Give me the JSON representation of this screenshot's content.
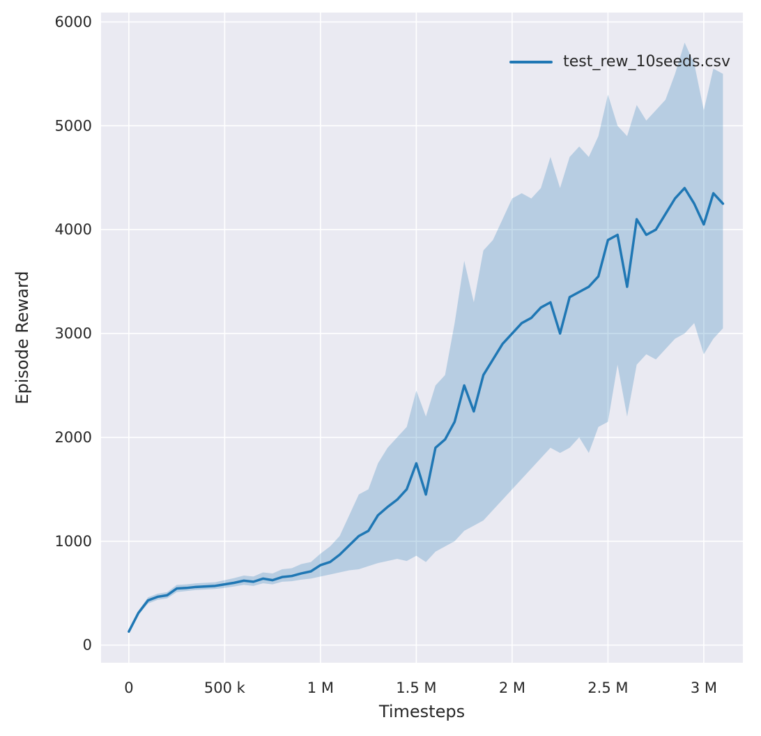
{
  "chart_data": {
    "type": "line",
    "title": "",
    "xlabel": "Timesteps",
    "ylabel": "Episode Reward",
    "legend": [
      "test_rew_10seeds.csv"
    ],
    "legend_position": "upper right",
    "grid": true,
    "style": "seaborn-darkgrid",
    "xlim": [
      -145000,
      3204000
    ],
    "ylim": [
      -170,
      6090
    ],
    "xtick_values": [
      0,
      500000,
      1000000,
      1500000,
      2000000,
      2500000,
      3000000
    ],
    "xtick_labels": [
      "0",
      "500 k",
      "1 M",
      "1.5 M",
      "2 M",
      "2.5 M",
      "3 M"
    ],
    "ytick_values": [
      0,
      1000,
      2000,
      3000,
      4000,
      5000,
      6000
    ],
    "ytick_labels": [
      "0",
      "1000",
      "2000",
      "3000",
      "4000",
      "5000",
      "6000"
    ],
    "colors": {
      "line": "#1f77b4",
      "band": "rgba(31,119,180,0.25)",
      "plot_bg": "#eaeaf2",
      "grid": "#ffffff",
      "text": "#262626"
    },
    "x": [
      0,
      50000,
      100000,
      150000,
      200000,
      250000,
      300000,
      350000,
      400000,
      450000,
      500000,
      550000,
      600000,
      650000,
      700000,
      750000,
      800000,
      850000,
      900000,
      950000,
      1000000,
      1050000,
      1100000,
      1150000,
      1200000,
      1250000,
      1300000,
      1350000,
      1400000,
      1450000,
      1500000,
      1550000,
      1600000,
      1650000,
      1700000,
      1750000,
      1800000,
      1850000,
      1900000,
      1950000,
      2000000,
      2050000,
      2100000,
      2150000,
      2200000,
      2250000,
      2300000,
      2350000,
      2400000,
      2450000,
      2500000,
      2550000,
      2600000,
      2650000,
      2700000,
      2750000,
      2800000,
      2850000,
      2900000,
      2950000,
      3000000,
      3050000,
      3100000
    ],
    "mean": [
      130,
      310,
      430,
      465,
      480,
      545,
      550,
      560,
      565,
      570,
      585,
      600,
      620,
      610,
      640,
      625,
      655,
      665,
      690,
      710,
      770,
      800,
      870,
      960,
      1050,
      1100,
      1250,
      1330,
      1400,
      1500,
      1750,
      1450,
      1900,
      1980,
      2150,
      2500,
      2250,
      2600,
      2750,
      2900,
      3000,
      3100,
      3150,
      3250,
      3300,
      3000,
      3350,
      3400,
      3450,
      3550,
      3900,
      3950,
      3450,
      4100,
      3950,
      4000,
      4150,
      4300,
      4400,
      4250,
      4050,
      4350,
      4250
    ],
    "band_lower": [
      115,
      290,
      400,
      435,
      450,
      510,
      520,
      530,
      535,
      540,
      550,
      565,
      580,
      570,
      595,
      585,
      610,
      615,
      630,
      640,
      660,
      680,
      700,
      720,
      730,
      760,
      790,
      810,
      830,
      810,
      860,
      800,
      900,
      950,
      1000,
      1100,
      1150,
      1200,
      1300,
      1400,
      1500,
      1600,
      1700,
      1800,
      1900,
      1850,
      1900,
      2000,
      1850,
      2100,
      2150,
      2700,
      2200,
      2700,
      2800,
      2750,
      2850,
      2950,
      3000,
      3100,
      2800,
      2950,
      3050
    ],
    "band_upper": [
      145,
      330,
      460,
      495,
      510,
      580,
      585,
      595,
      600,
      605,
      625,
      645,
      670,
      660,
      700,
      690,
      730,
      740,
      780,
      800,
      880,
      950,
      1050,
      1250,
      1450,
      1500,
      1750,
      1900,
      2000,
      2100,
      2450,
      2200,
      2500,
      2600,
      3100,
      3700,
      3300,
      3800,
      3900,
      4100,
      4300,
      4350,
      4300,
      4400,
      4700,
      4400,
      4700,
      4800,
      4700,
      4900,
      5300,
      5000,
      4900,
      5200,
      5050,
      5150,
      5250,
      5500,
      5800,
      5600,
      5150,
      5550,
      5500
    ]
  }
}
